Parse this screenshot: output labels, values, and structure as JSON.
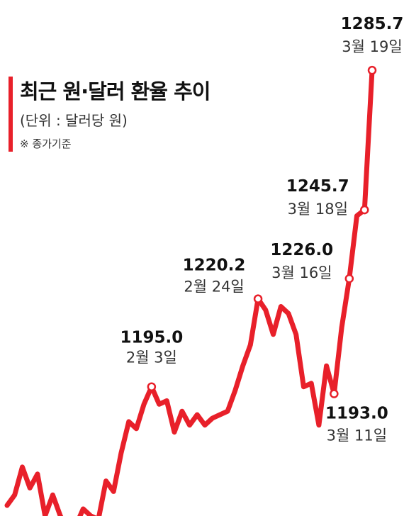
{
  "header": {
    "title": "최근 원·달러 환율 추이",
    "unit": "(단위 : 달러당 원)",
    "note": "※ 종가기준"
  },
  "colors": {
    "line": "#e8202a",
    "marker_fill": "#ffffff",
    "accent": "#e8202a"
  },
  "chart_data": {
    "type": "line",
    "title": "최근 원·달러 환율 추이",
    "ylabel": "(단위 : 달러당 원)",
    "note": "※ 종가기준",
    "grid": false,
    "legend": "none",
    "ylim": [
      1160,
      1290
    ],
    "series": [
      {
        "values": [
          1161,
          1164,
          1172,
          1166,
          1170,
          1158,
          1164,
          1158,
          1154,
          1155,
          1160,
          1158,
          1157,
          1168,
          1165,
          1176,
          1185,
          1183,
          1190,
          1195.0,
          1190,
          1191,
          1182,
          1188,
          1184,
          1187,
          1184,
          1186,
          1187,
          1188,
          1194,
          1201,
          1207,
          1220.2,
          1217,
          1210,
          1218,
          1216,
          1210,
          1195,
          1196,
          1184,
          1201,
          1193.0,
          1212,
          1226.0,
          1244,
          1245.7,
          1285.7
        ]
      }
    ],
    "annotations": [
      {
        "index": 19,
        "value": "1195.0",
        "date": "2월 3일"
      },
      {
        "index": 33,
        "value": "1220.2",
        "date": "2월 24일"
      },
      {
        "index": 43,
        "value": "1193.0",
        "date": "3월 11일"
      },
      {
        "index": 45,
        "value": "1226.0",
        "date": "3월 16일"
      },
      {
        "index": 47,
        "value": "1245.7",
        "date": "3월 18일"
      },
      {
        "index": 48,
        "value": "1285.7",
        "date": "3월 19일"
      }
    ]
  }
}
